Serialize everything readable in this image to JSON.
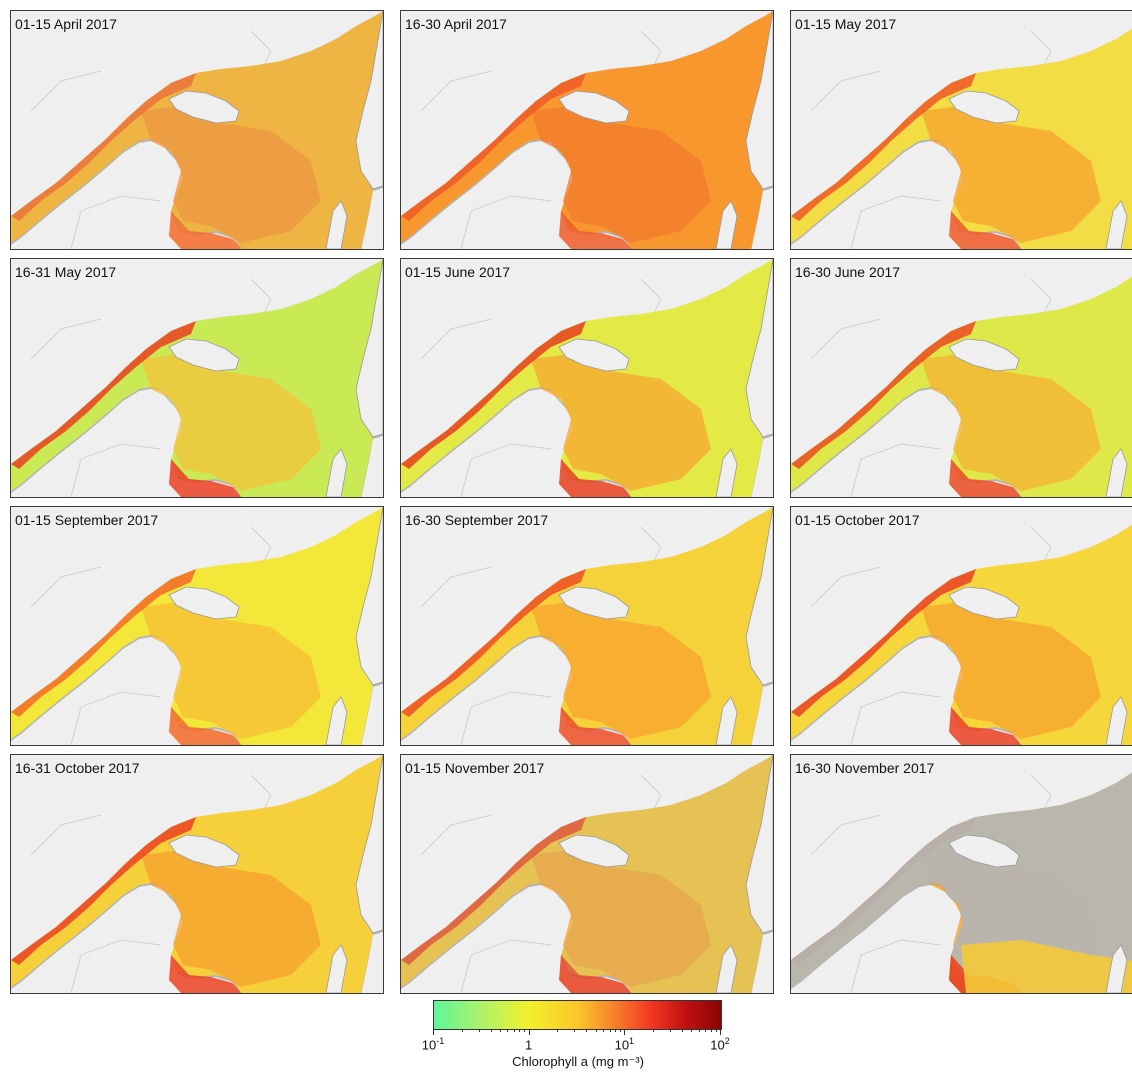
{
  "panels": [
    {
      "label": "01-15 April 2017",
      "fill": "#f8b52f",
      "core": "#f79330",
      "edge": "#f46a28",
      "gray": 0.12
    },
    {
      "label": "16-30 April 2017",
      "fill": "#f7972e",
      "core": "#f37a2b",
      "edge": "#ef5a26",
      "gray": 0.03
    },
    {
      "label": "01-15 May 2017",
      "fill": "#f2dd45",
      "core": "#f7a22f",
      "edge": "#f05826",
      "gray": 0.03
    },
    {
      "label": "16-31 May 2017",
      "fill": "#c9ea55",
      "core": "#f3c138",
      "edge": "#ea3f22",
      "gray": 0.03
    },
    {
      "label": "01-15 June 2017",
      "fill": "#e4ea45",
      "core": "#f7a730",
      "edge": "#e8401f",
      "gray": 0.03
    },
    {
      "label": "16-30 June 2017",
      "fill": "#dfe849",
      "core": "#f7b132",
      "edge": "#eb4a22",
      "gray": 0.03
    },
    {
      "label": "01-15 September 2017",
      "fill": "#f3e83a",
      "core": "#f8bd34",
      "edge": "#f26a28",
      "gray": 0.02
    },
    {
      "label": "16-30 September 2017",
      "fill": "#f6d23a",
      "core": "#f7a22f",
      "edge": "#ed4d24",
      "gray": 0.05
    },
    {
      "label": "01-15 October 2017",
      "fill": "#f5d73c",
      "core": "#f7a22f",
      "edge": "#eb4022",
      "gray": 0.03
    },
    {
      "label": "16-31 October 2017",
      "fill": "#f6d03a",
      "core": "#f6a02e",
      "edge": "#ea4222",
      "gray": 0.03
    },
    {
      "label": "01-15 November 2017",
      "fill": "#f5c73a",
      "core": "#f5a12e",
      "edge": "#e9401f",
      "gray": 0.18
    },
    {
      "label": "16-30 November 2017",
      "fill": "#f4c93a",
      "core": "#f5a02e",
      "edge": "#e94a22",
      "gray": 0.75
    }
  ],
  "colorbar": {
    "title": "Chlorophyll a  (mg m⁻³)",
    "ticks": [
      {
        "base": "10",
        "exp": "-1"
      },
      {
        "base": "1",
        "exp": ""
      },
      {
        "base": "10",
        "exp": "1"
      },
      {
        "base": "10",
        "exp": "2"
      }
    ],
    "range_log10": [
      -1,
      2
    ],
    "colors": [
      "#5ef59a",
      "#f3f02a",
      "#f33a22",
      "#8a0505"
    ]
  },
  "map_colors": {
    "land": "#efefef",
    "no_data": "#b4b4b4",
    "border": "#c8c8c8"
  }
}
